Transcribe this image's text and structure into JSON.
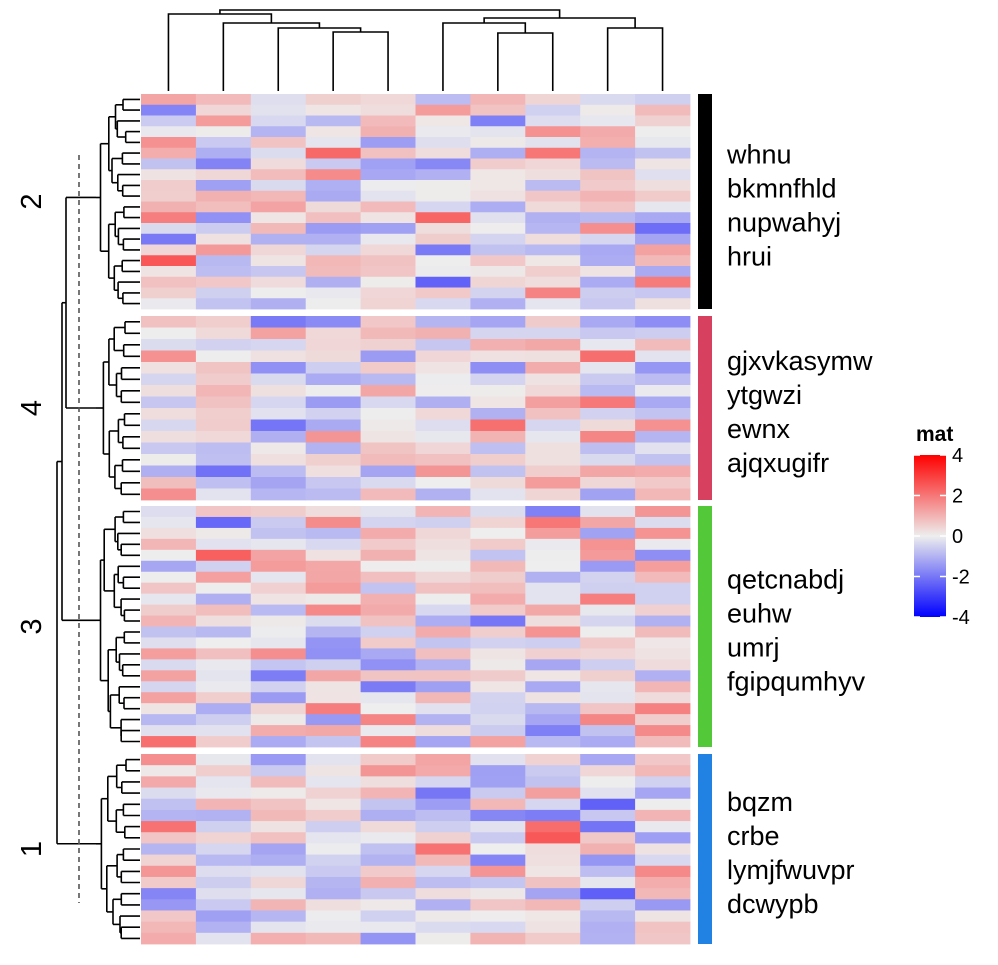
{
  "chart_data": {
    "type": "heatmap",
    "legend": {
      "title": "mat",
      "ticks": [
        4,
        2,
        0,
        -2,
        -4
      ],
      "range": [
        -4,
        4
      ],
      "colors": {
        "low": "#0000FF",
        "mid": "#EEEEEE",
        "high": "#FF0000"
      }
    },
    "slices": [
      {
        "label": "2",
        "color": "#000000",
        "rows": 20,
        "labels": [
          "whnu",
          "bkmnfhld",
          "nupwahyj",
          "hrui"
        ]
      },
      {
        "label": "4",
        "color": "#D7405F",
        "rows": 16,
        "labels": [
          "gjxvkasymw",
          "ytgwzi",
          "ewnx",
          "ajqxugifr"
        ]
      },
      {
        "label": "3",
        "color": "#53C93A",
        "rows": 22,
        "labels": [
          "qetcnabdj",
          "euhw",
          "umrj",
          "fgipqumhyv"
        ]
      },
      {
        "label": "1",
        "color": "#2182E3",
        "rows": 17,
        "labels": [
          "bqzm",
          "crbe",
          "lymjfwuvpr",
          "dcwypb"
        ]
      }
    ],
    "columns": 10,
    "column_dendrogram": true,
    "row_dendrogram": true,
    "row_split_cut_line": "dashed"
  }
}
